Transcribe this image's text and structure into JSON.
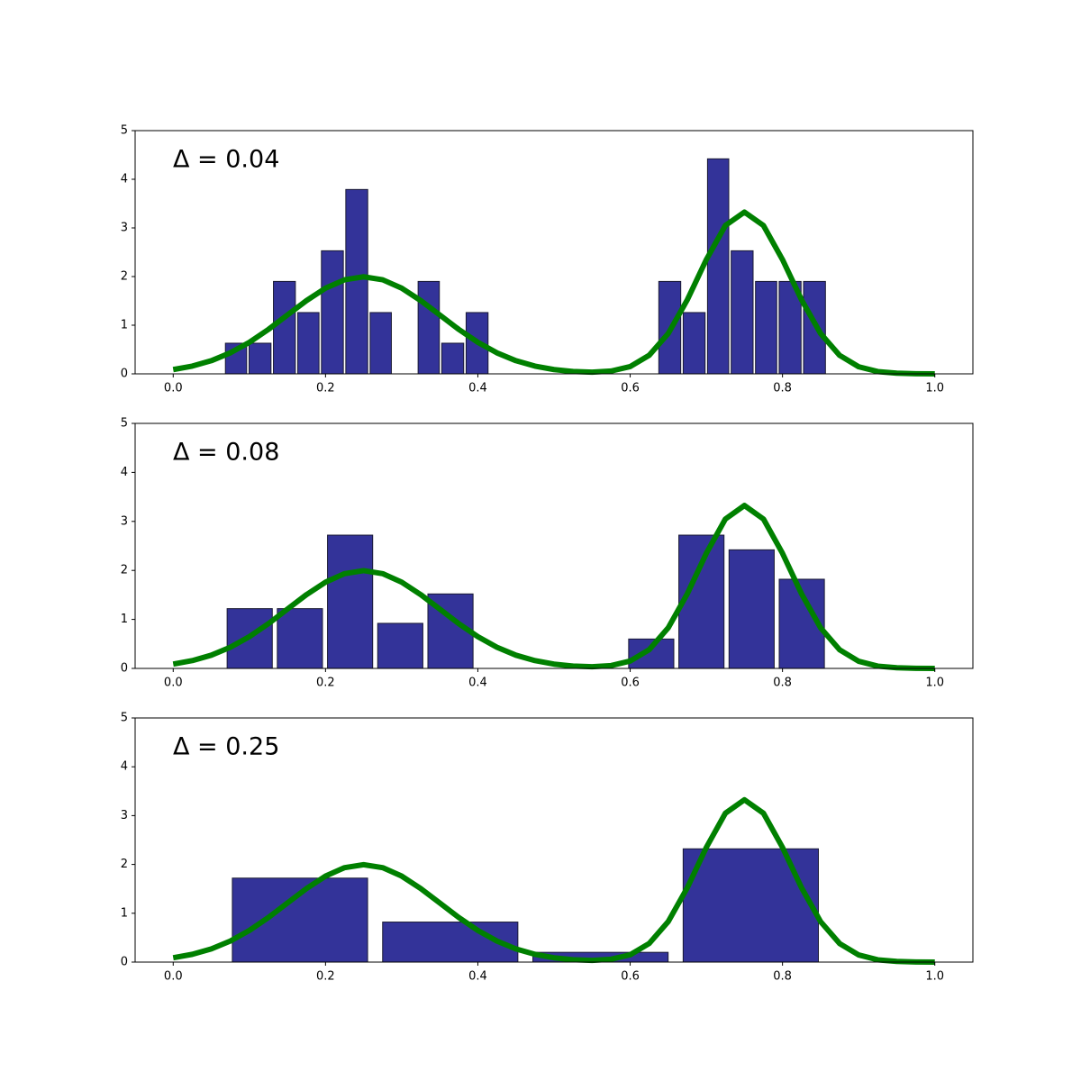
{
  "chart_data": [
    {
      "type": "histogram",
      "annotation": "Δ = 0.04",
      "bins": [
        0.067,
        0.098,
        0.13,
        0.162,
        0.193,
        0.225,
        0.257,
        0.288,
        0.32,
        0.351,
        0.383,
        0.415,
        0.446,
        0.478,
        0.51,
        0.541,
        0.573,
        0.605,
        0.636,
        0.668,
        0.7,
        0.731,
        0.763,
        0.794,
        0.826,
        0.858
      ],
      "values": [
        0.63,
        0.63,
        1.9,
        1.26,
        2.53,
        3.79,
        1.26,
        0,
        1.9,
        0.63,
        1.26,
        0,
        0,
        0,
        0,
        0,
        0,
        0,
        1.9,
        1.26,
        4.42,
        2.53,
        1.9,
        1.9,
        1.9
      ],
      "color": "#333399",
      "line": {
        "x": [
          0,
          0.025,
          0.05,
          0.075,
          0.1,
          0.125,
          0.15,
          0.175,
          0.2,
          0.225,
          0.25,
          0.275,
          0.3,
          0.325,
          0.35,
          0.375,
          0.4,
          0.425,
          0.45,
          0.475,
          0.5,
          0.525,
          0.55,
          0.575,
          0.6,
          0.625,
          0.65,
          0.675,
          0.7,
          0.725,
          0.75,
          0.775,
          0.8,
          0.825,
          0.85,
          0.875,
          0.9,
          0.925,
          0.95,
          0.975,
          1.0
        ],
        "values": [
          0.088,
          0.159,
          0.27,
          0.432,
          0.648,
          0.913,
          1.21,
          1.506,
          1.761,
          1.934,
          1.995,
          1.934,
          1.761,
          1.506,
          1.21,
          0.913,
          0.648,
          0.432,
          0.27,
          0.159,
          0.088,
          0.048,
          0.035,
          0.058,
          0.15,
          0.382,
          0.83,
          1.522,
          2.349,
          3.049,
          3.325,
          3.049,
          2.349,
          1.522,
          0.829,
          0.38,
          0.146,
          0.047,
          0.013,
          0.003,
          0.001
        ],
        "color": "#008000"
      },
      "xlim": [
        -0.05,
        1.05
      ],
      "ylim": [
        0,
        5
      ],
      "xticks": [
        {
          "value": 0,
          "label": "0.0"
        },
        0.2,
        0.4,
        0.6,
        0.8,
        {
          "value": 1,
          "label": "1.0"
        }
      ],
      "yticks": [
        0,
        1,
        2,
        3,
        4,
        5
      ]
    },
    {
      "type": "histogram",
      "annotation": "Δ = 0.08",
      "bins": [
        0.0675,
        0.1334,
        0.1993,
        0.2652,
        0.3311,
        0.397,
        0.4629,
        0.5288,
        0.5947,
        0.6606,
        0.7265,
        0.7924,
        0.8583
      ],
      "values": [
        1.22,
        1.22,
        2.72,
        0.92,
        1.52,
        0,
        0,
        0,
        0.6,
        2.72,
        2.42,
        1.82
      ],
      "color": "#333399",
      "line": {
        "x": [
          0,
          0.025,
          0.05,
          0.075,
          0.1,
          0.125,
          0.15,
          0.175,
          0.2,
          0.225,
          0.25,
          0.275,
          0.3,
          0.325,
          0.35,
          0.375,
          0.4,
          0.425,
          0.45,
          0.475,
          0.5,
          0.525,
          0.55,
          0.575,
          0.6,
          0.625,
          0.65,
          0.675,
          0.7,
          0.725,
          0.75,
          0.775,
          0.8,
          0.825,
          0.85,
          0.875,
          0.9,
          0.925,
          0.95,
          0.975,
          1.0
        ],
        "values": [
          0.088,
          0.159,
          0.27,
          0.432,
          0.648,
          0.913,
          1.21,
          1.506,
          1.761,
          1.934,
          1.995,
          1.934,
          1.761,
          1.506,
          1.21,
          0.913,
          0.648,
          0.432,
          0.27,
          0.159,
          0.088,
          0.048,
          0.035,
          0.058,
          0.15,
          0.382,
          0.83,
          1.522,
          2.349,
          3.049,
          3.325,
          3.049,
          2.349,
          1.522,
          0.829,
          0.38,
          0.146,
          0.047,
          0.013,
          0.003,
          0.001
        ],
        "color": "#008000"
      },
      "xlim": [
        -0.05,
        1.05
      ],
      "ylim": [
        0,
        5
      ],
      "xticks": [
        {
          "value": 0,
          "label": "0.0"
        },
        0.2,
        0.4,
        0.6,
        0.8,
        {
          "value": 1,
          "label": "1.0"
        }
      ],
      "yticks": [
        0,
        1,
        2,
        3,
        4,
        5
      ]
    },
    {
      "type": "histogram",
      "annotation": "Δ = 0.25",
      "bins": [
        0.0678,
        0.2651,
        0.4624,
        0.6597,
        0.857
      ],
      "values": [
        1.72,
        0.82,
        0.2,
        2.32
      ],
      "color": "#333399",
      "line": {
        "x": [
          0,
          0.025,
          0.05,
          0.075,
          0.1,
          0.125,
          0.15,
          0.175,
          0.2,
          0.225,
          0.25,
          0.275,
          0.3,
          0.325,
          0.35,
          0.375,
          0.4,
          0.425,
          0.45,
          0.475,
          0.5,
          0.525,
          0.55,
          0.575,
          0.6,
          0.625,
          0.65,
          0.675,
          0.7,
          0.725,
          0.75,
          0.775,
          0.8,
          0.825,
          0.85,
          0.875,
          0.9,
          0.925,
          0.95,
          0.975,
          1.0
        ],
        "values": [
          0.088,
          0.159,
          0.27,
          0.432,
          0.648,
          0.913,
          1.21,
          1.506,
          1.761,
          1.934,
          1.995,
          1.934,
          1.761,
          1.506,
          1.21,
          0.913,
          0.648,
          0.432,
          0.27,
          0.159,
          0.088,
          0.048,
          0.035,
          0.058,
          0.15,
          0.382,
          0.83,
          1.522,
          2.349,
          3.049,
          3.325,
          3.049,
          2.349,
          1.522,
          0.829,
          0.38,
          0.146,
          0.047,
          0.013,
          0.003,
          0.001
        ],
        "color": "#008000"
      },
      "xlim": [
        -0.05,
        1.05
      ],
      "ylim": [
        0,
        5
      ],
      "xticks": [
        {
          "value": 0,
          "label": "0.0"
        },
        0.2,
        0.4,
        0.6,
        0.8,
        {
          "value": 1,
          "label": "1.0"
        }
      ],
      "yticks": [
        0,
        1,
        2,
        3,
        4,
        5
      ]
    }
  ]
}
